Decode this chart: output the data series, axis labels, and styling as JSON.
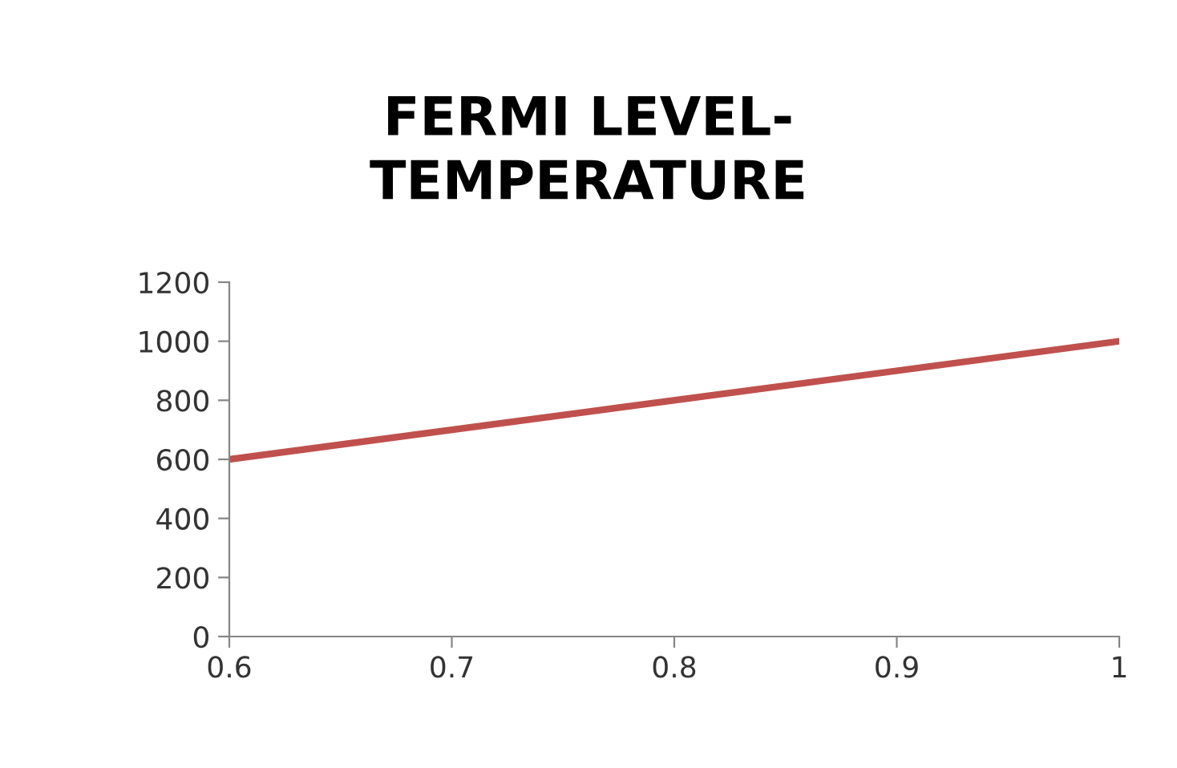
{
  "chart_data": {
    "type": "line",
    "title": "FERMI LEVEL-\nTEMPERATURE",
    "x": [
      0.6,
      1
    ],
    "series": [
      {
        "color": "#c0504d",
        "values": [
          600,
          1000
        ]
      }
    ],
    "xlim": [
      0.6,
      1
    ],
    "xticks": [
      0.6,
      0.7,
      0.8,
      0.9,
      1
    ],
    "ylim": [
      0,
      1200
    ],
    "yticks": [
      0,
      200,
      400,
      600,
      800,
      1000,
      1200
    ],
    "grid": false,
    "marker": "none",
    "line_style": "solid"
  }
}
